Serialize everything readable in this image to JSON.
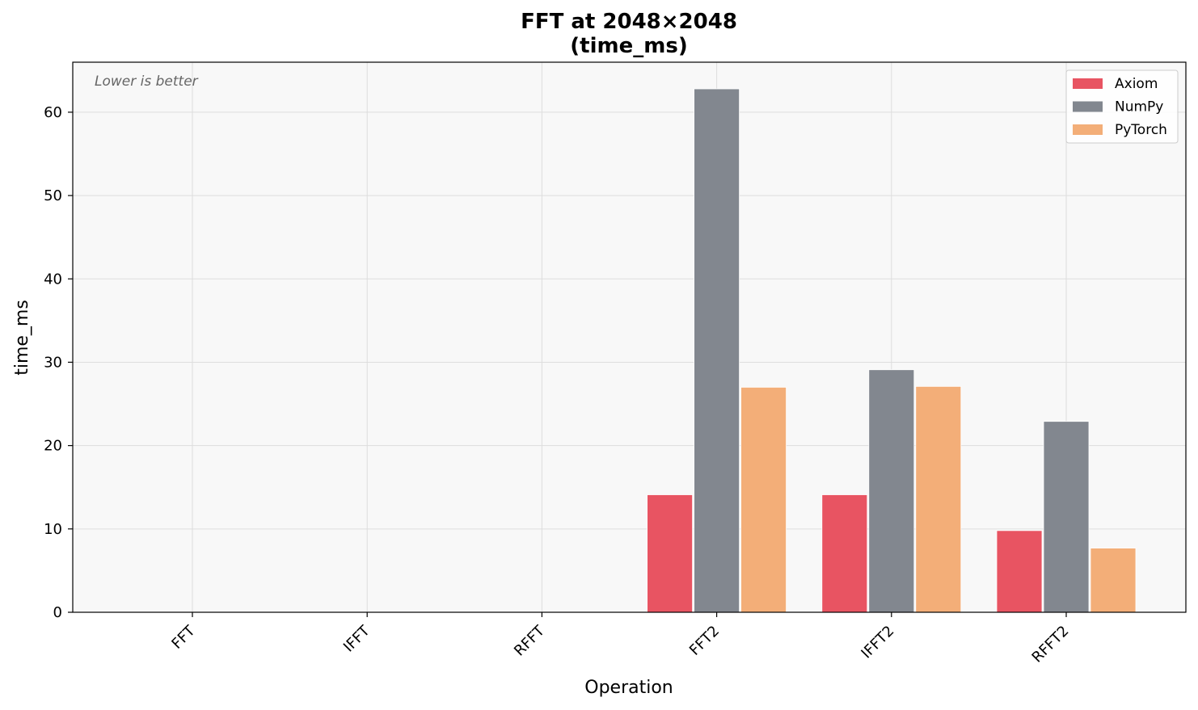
{
  "chart_data": {
    "type": "bar",
    "title": "FFT at 2048×2048",
    "subtitle": "(time_ms)",
    "xlabel": "Operation",
    "ylabel": "time_ms",
    "annotation": "Lower is better",
    "categories": [
      "FFT",
      "IFFT",
      "RFFT",
      "FFT2",
      "IFFT2",
      "RFFT2"
    ],
    "series": [
      {
        "name": "Axiom",
        "color": "#e85462",
        "values": [
          0,
          0,
          0,
          14.1,
          14.1,
          9.8
        ]
      },
      {
        "name": "NumPy",
        "color": "#82878f",
        "values": [
          0,
          0,
          0,
          62.8,
          29.1,
          22.9
        ]
      },
      {
        "name": "PyTorch",
        "color": "#f3ae78",
        "values": [
          0,
          0,
          0,
          27.0,
          27.1,
          7.7
        ]
      }
    ],
    "ylim": [
      0,
      66
    ],
    "yticks": [
      0,
      10,
      20,
      30,
      40,
      50,
      60
    ],
    "grid": true,
    "legend": "top-right",
    "plot_background": "#f8f8f8"
  }
}
